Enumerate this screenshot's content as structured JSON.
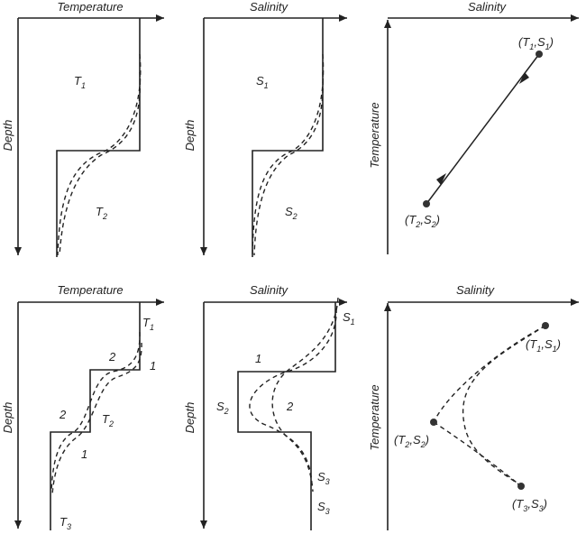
{
  "labels": {
    "temperature": "Temperature",
    "salinity": "Salinity",
    "depth": "Depth",
    "T": "T",
    "S": "S",
    "sub1": "1",
    "sub2": "2",
    "sub3": "3",
    "one": "1",
    "two": "2",
    "open_paren": "(",
    "close_paren": ")",
    "comma": ","
  }
}
